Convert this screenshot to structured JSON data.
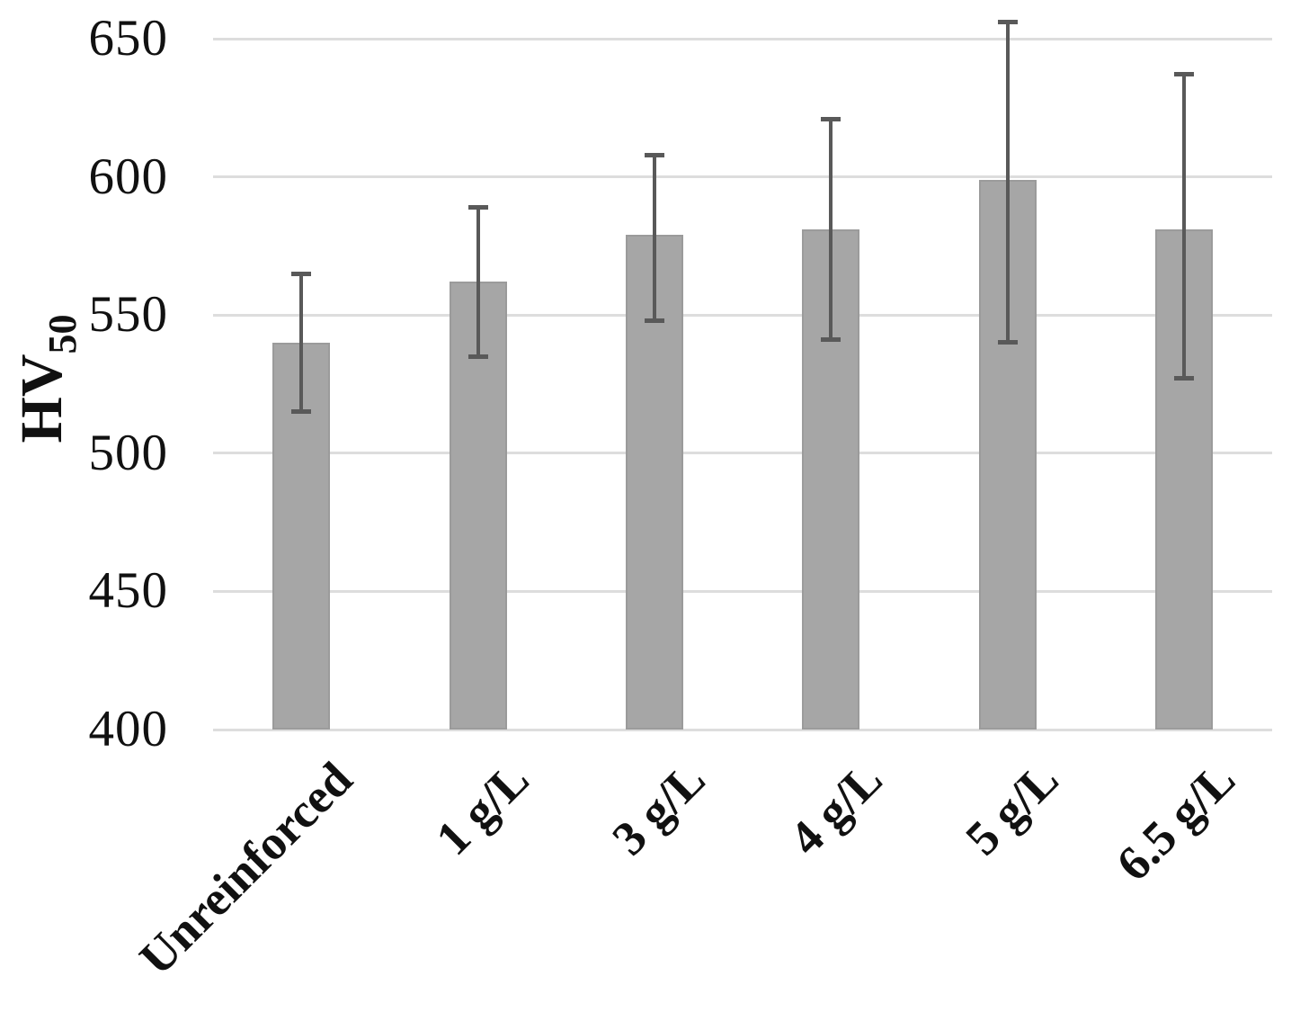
{
  "chart_data": {
    "type": "bar",
    "title": "",
    "xlabel": "",
    "ylabel": "HV",
    "ylabel_subscript": "50",
    "categories": [
      "Unreinforced",
      "1 g/L",
      "3 g/L",
      "4 g/L",
      "5 g/L",
      "6.5 g/L"
    ],
    "values": [
      540,
      562,
      579,
      581,
      599,
      581
    ],
    "error_low": [
      515,
      535,
      548,
      541,
      540,
      527
    ],
    "error_high": [
      565,
      589,
      608,
      621,
      656,
      637
    ],
    "yticks": [
      400,
      450,
      500,
      550,
      600,
      650
    ],
    "ylim": [
      400,
      664
    ],
    "grid": true,
    "legend": false,
    "bar_color": "#a6a6a6",
    "bar_edge_color": "#9b9b9b",
    "error_color": "#595959",
    "gridline_color": "#dddddd",
    "text_color": "#111111"
  }
}
